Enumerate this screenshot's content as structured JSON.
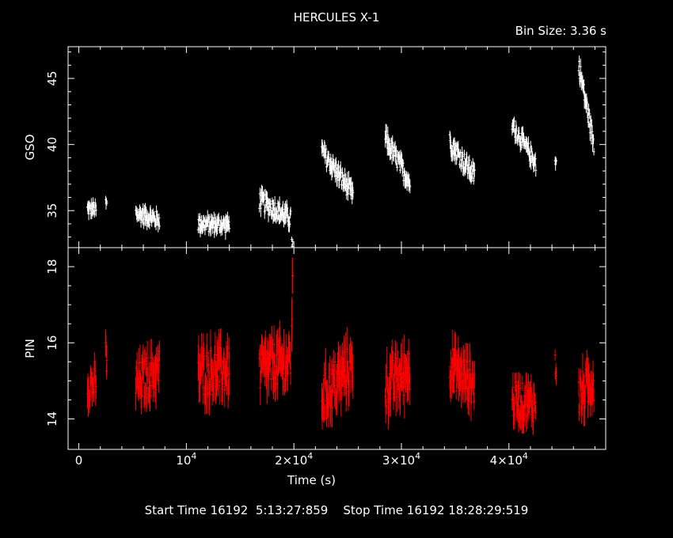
{
  "header": {
    "title": "HERCULES X-1",
    "bin_size": "Bin Size: 3.36 s"
  },
  "footer": {
    "start_label": "Start Time",
    "start_value": "16192  5:13:27:859",
    "stop_label": "Stop Time",
    "stop_value": "16192 18:28:29:519"
  },
  "chart_data": {
    "type": "scatter",
    "title": "HERCULES X-1",
    "subtitle": "Bin Size: 3.36 s",
    "xlabel": "Time (s)",
    "xlim": [
      -1000,
      49000
    ],
    "x_ticks": [
      {
        "value": 0,
        "label": "0",
        "exp": ""
      },
      {
        "value": 10000,
        "label": "10",
        "exp": "4"
      },
      {
        "value": 20000,
        "label": "2×10",
        "exp": "4"
      },
      {
        "value": 30000,
        "label": "3×10",
        "exp": "4"
      },
      {
        "value": 40000,
        "label": "4×10",
        "exp": "4"
      }
    ],
    "panels": [
      {
        "ylabel": "GSO",
        "color": "#ffffff",
        "ylim": [
          32.2,
          47.4
        ],
        "y_ticks": [
          35,
          40,
          45
        ],
        "segments": [
          {
            "x": [
              800,
              1600
            ],
            "y": [
              35.1,
              35.1
            ],
            "spread": 1.5
          },
          {
            "x": [
              2500,
              2600
            ],
            "y": [
              35.5,
              35.5
            ],
            "spread": 1.5
          },
          {
            "x": [
              5300,
              7500
            ],
            "y": [
              34.8,
              34.3
            ],
            "spread": 1.7
          },
          {
            "x": [
              11100,
              14000
            ],
            "y": [
              34.0,
              33.9
            ],
            "spread": 1.7
          },
          {
            "x": [
              16800,
              19700
            ],
            "y": [
              35.8,
              34.4
            ],
            "spread": 2.0
          },
          {
            "x": [
              19800,
              19900
            ],
            "y": [
              32.5,
              32.5
            ],
            "spread": 1.0
          },
          {
            "x": [
              22600,
              25500
            ],
            "y": [
              39.5,
              36.2
            ],
            "spread": 2.0
          },
          {
            "x": [
              28500,
              30800
            ],
            "y": [
              40.5,
              37.1
            ],
            "spread": 2.0
          },
          {
            "x": [
              34500,
              36800
            ],
            "y": [
              40.2,
              37.6
            ],
            "spread": 2.0
          },
          {
            "x": [
              40300,
              42500
            ],
            "y": [
              41.5,
              38.6
            ],
            "spread": 1.8
          },
          {
            "x": [
              44300,
              44400
            ],
            "y": [
              38.6,
              38.6
            ],
            "spread": 1.5
          },
          {
            "x": [
              46500,
              47900
            ],
            "y": [
              46.0,
              40.0
            ],
            "spread": 2.0
          }
        ]
      },
      {
        "ylabel": "PIN",
        "color": "#ff0000",
        "ylim": [
          13.2,
          18.5
        ],
        "y_ticks": [
          14,
          16,
          18
        ],
        "segments": [
          {
            "x": [
              800,
              1600
            ],
            "y": [
              14.9,
              14.9
            ],
            "spread": 1.3
          },
          {
            "x": [
              2500,
              2600
            ],
            "y": [
              15.6,
              15.6
            ],
            "spread": 1.5
          },
          {
            "x": [
              5300,
              7500
            ],
            "y": [
              14.9,
              15.3
            ],
            "spread": 1.6
          },
          {
            "x": [
              11100,
              14000
            ],
            "y": [
              15.2,
              15.3
            ],
            "spread": 1.8
          },
          {
            "x": [
              16800,
              19700
            ],
            "y": [
              15.3,
              15.5
            ],
            "spread": 1.8
          },
          {
            "x": [
              19800,
              19900
            ],
            "y": [
              17.0,
              17.0
            ],
            "spread": 2.4
          },
          {
            "x": [
              22600,
              25500
            ],
            "y": [
              14.6,
              15.4
            ],
            "spread": 1.8
          },
          {
            "x": [
              28500,
              30800
            ],
            "y": [
              14.8,
              15.3
            ],
            "spread": 1.8
          },
          {
            "x": [
              34500,
              36800
            ],
            "y": [
              15.4,
              14.9
            ],
            "spread": 1.6
          },
          {
            "x": [
              40300,
              42500
            ],
            "y": [
              14.5,
              14.4
            ],
            "spread": 1.4
          },
          {
            "x": [
              44300,
              44400
            ],
            "y": [
              15.4,
              15.4
            ],
            "spread": 1.0
          },
          {
            "x": [
              46500,
              47900
            ],
            "y": [
              14.6,
              15.0
            ],
            "spread": 1.6
          }
        ]
      }
    ],
    "grid": false
  }
}
